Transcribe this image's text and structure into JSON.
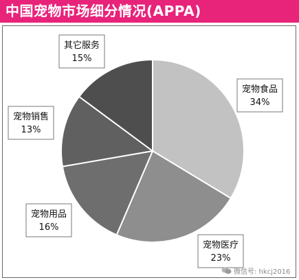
{
  "header": {
    "title": "中国宠物市场细分情况(APPA)"
  },
  "colors": {
    "title_bar": "#e8237a",
    "title_text": "#ffffff"
  },
  "watermark": {
    "icon": "wechat-icon",
    "text": "微信号: hkcj2016"
  },
  "chart_data": {
    "type": "pie",
    "title": "中国宠物市场细分情况(APPA)",
    "start": "12 o'clock",
    "direction": "clockwise",
    "slices": [
      {
        "label": "宠物食品",
        "value": 34,
        "value_label": "34%",
        "color": "#c2c2c2"
      },
      {
        "label": "宠物医疗",
        "value": 23,
        "value_label": "23%",
        "color": "#8e8e8e"
      },
      {
        "label": "宠物用品",
        "value": 16,
        "value_label": "16%",
        "color": "#6e6e6e"
      },
      {
        "label": "宠物销售",
        "value": 13,
        "value_label": "13%",
        "color": "#606060"
      },
      {
        "label": "其它服务",
        "value": 15,
        "value_label": "15%",
        "color": "#4e4e4e"
      }
    ]
  }
}
